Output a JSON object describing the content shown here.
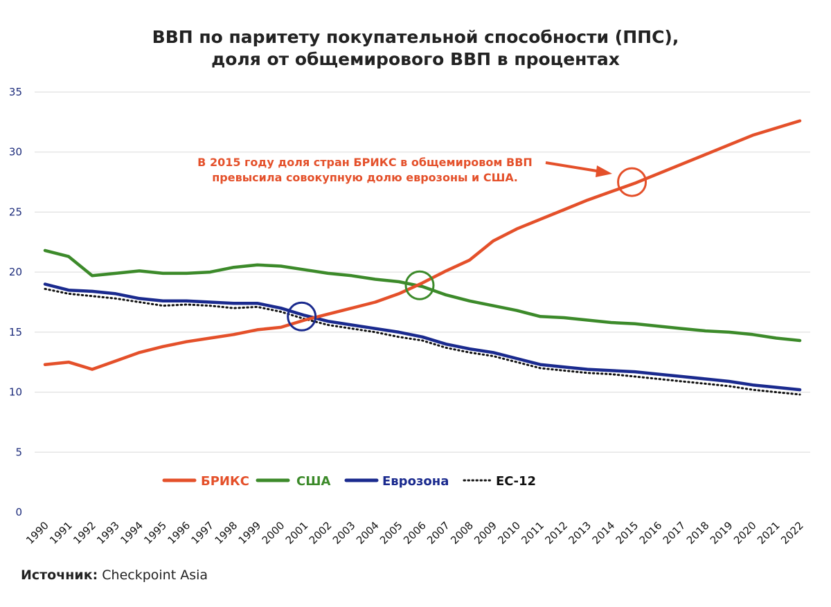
{
  "chart_data": {
    "type": "line",
    "title_lines": [
      "ВВП по паритету покупательной способности (ППС),",
      "доля от общемирового ВВП в процентах"
    ],
    "x": [
      "1990",
      "1991",
      "1992",
      "1993",
      "1994",
      "1995",
      "1996",
      "1997",
      "1998",
      "1999",
      "2000",
      "2001",
      "2002",
      "2003",
      "2004",
      "2005",
      "2006",
      "2007",
      "2008",
      "2009",
      "2010",
      "2011",
      "2012",
      "2013",
      "2014",
      "2015",
      "2016",
      "2017",
      "2018",
      "2019",
      "2020",
      "2021",
      "2022"
    ],
    "ylim": [
      0,
      35
    ],
    "yticks": [
      "0",
      "5",
      "10",
      "15",
      "20",
      "25",
      "30",
      "35"
    ],
    "grid": true,
    "series": [
      {
        "name": "БРИКС",
        "color": "#e4502a",
        "style": "solid",
        "values": [
          12.3,
          12.5,
          11.9,
          12.6,
          13.3,
          13.8,
          14.2,
          14.5,
          14.8,
          15.2,
          15.4,
          16.0,
          16.5,
          17.0,
          17.5,
          18.2,
          19.1,
          20.1,
          21.0,
          22.6,
          23.6,
          24.4,
          25.2,
          26.0,
          26.7,
          27.4,
          28.2,
          29.0,
          29.8,
          30.6,
          31.4,
          32.0,
          32.6
        ]
      },
      {
        "name": "США",
        "color": "#3c8a2a",
        "style": "solid",
        "values": [
          21.8,
          21.3,
          19.7,
          19.9,
          20.1,
          19.9,
          19.9,
          20.0,
          20.4,
          20.6,
          20.5,
          20.2,
          19.9,
          19.7,
          19.4,
          19.2,
          18.8,
          18.1,
          17.6,
          17.2,
          16.8,
          16.3,
          16.2,
          16.0,
          15.8,
          15.7,
          15.5,
          15.3,
          15.1,
          15.0,
          14.8,
          14.5,
          14.3
        ]
      },
      {
        "name": "Еврозона",
        "color": "#1a2a8e",
        "style": "solid",
        "values": [
          19.0,
          18.5,
          18.4,
          18.2,
          17.8,
          17.6,
          17.6,
          17.5,
          17.4,
          17.4,
          17.0,
          16.4,
          15.9,
          15.6,
          15.3,
          15.0,
          14.6,
          14.0,
          13.6,
          13.3,
          12.8,
          12.3,
          12.1,
          11.9,
          11.8,
          11.7,
          11.5,
          11.3,
          11.1,
          10.9,
          10.6,
          10.4,
          10.2
        ]
      },
      {
        "name": "ЕС-12",
        "color": "#111111",
        "style": "dotted",
        "values": [
          18.6,
          18.2,
          18.0,
          17.8,
          17.5,
          17.2,
          17.3,
          17.2,
          17.0,
          17.1,
          16.7,
          16.1,
          15.6,
          15.3,
          15.0,
          14.6,
          14.3,
          13.7,
          13.3,
          13.0,
          12.5,
          12.0,
          11.8,
          11.6,
          11.5,
          11.3,
          11.1,
          10.9,
          10.7,
          10.5,
          10.2,
          10.0,
          9.8
        ]
      }
    ],
    "highlights": [
      {
        "series": "Еврозона",
        "x": "2001",
        "y": 16.3,
        "color": "#1a2a8e"
      },
      {
        "series": "США",
        "x": "2006",
        "y": 18.9,
        "color": "#3c8a2a"
      },
      {
        "series": "БРИКС",
        "x": "2015",
        "y": 27.5,
        "color": "#e4502a"
      }
    ],
    "annotation": {
      "lines": [
        "В 2015 году доля стран БРИКС в общемировом ВВП",
        "превысила совокупную долю еврозоны и США."
      ],
      "color": "#e4502a"
    },
    "legend_placement": "bottom-left",
    "legend": [
      "БРИКС",
      "США",
      "Еврозона",
      "ЕС-12"
    ]
  },
  "source": {
    "label": "Источник:",
    "text": "Checkpoint Asia"
  }
}
